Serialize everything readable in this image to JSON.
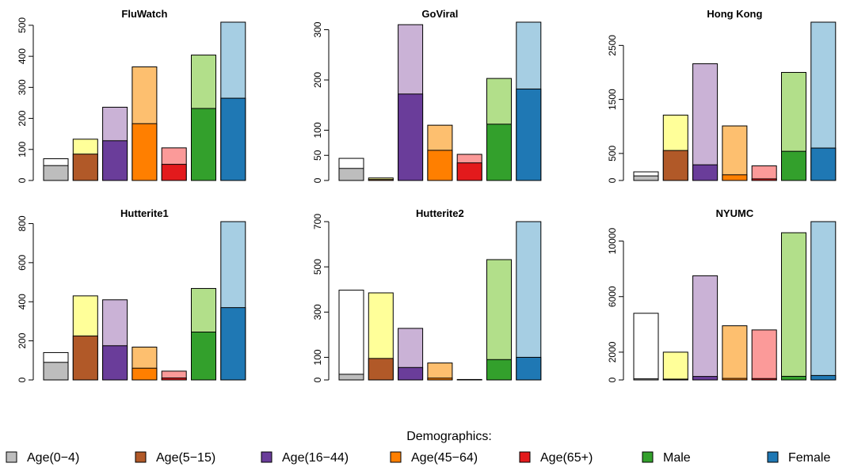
{
  "chart_data": {
    "type": "bar",
    "stacked": true,
    "grid": false,
    "legend": {
      "title": "Demographics:",
      "position": "bottom",
      "entries": [
        {
          "label": "Age(0−4)",
          "color": "#bdbdbd"
        },
        {
          "label": "Age(5−15)",
          "color": "#b15928"
        },
        {
          "label": "Age(16−44)",
          "color": "#6a3d9a"
        },
        {
          "label": "Age(45−64)",
          "color": "#ff7f00"
        },
        {
          "label": "Age(65+)",
          "color": "#e31a1c"
        },
        {
          "label": "Male",
          "color": "#33a02c"
        },
        {
          "label": "Female",
          "color": "#1f78b4"
        }
      ]
    },
    "colors": {
      "dark": [
        "#bdbdbd",
        "#b15928",
        "#6a3d9a",
        "#ff7f00",
        "#e31a1c",
        "#33a02c",
        "#1f78b4"
      ],
      "light": [
        "#ffffff",
        "#ffff99",
        "#cab2d6",
        "#fdbf6f",
        "#fb9a99",
        "#b2df8a",
        "#a6cee3"
      ]
    },
    "panels": [
      {
        "title": "FluWatch",
        "ylim": [
          0,
          510
        ],
        "yticks": [
          0,
          100,
          200,
          300,
          400,
          500
        ],
        "positive": [
          48,
          85,
          128,
          183,
          52,
          232,
          265
        ],
        "total": [
          70,
          133,
          236,
          366,
          105,
          404,
          510
        ]
      },
      {
        "title": "GoViral",
        "ylim": [
          0,
          315
        ],
        "yticks": [
          0,
          50,
          100,
          200,
          300
        ],
        "positive": [
          24,
          2,
          172,
          60,
          35,
          112,
          182
        ],
        "total": [
          44,
          5,
          310,
          110,
          52,
          203,
          315
        ]
      },
      {
        "title": "Hong Kong",
        "ylim": [
          0,
          2930
        ],
        "yticks": [
          0,
          500,
          1500,
          2500
        ],
        "positive": [
          85,
          555,
          290,
          105,
          30,
          540,
          600
        ],
        "total": [
          160,
          1210,
          2160,
          1010,
          270,
          2000,
          2930
        ]
      },
      {
        "title": "Hutterite1",
        "ylim": [
          0,
          810
        ],
        "yticks": [
          0,
          200,
          400,
          600,
          800
        ],
        "positive": [
          90,
          225,
          175,
          60,
          10,
          245,
          370
        ],
        "total": [
          140,
          430,
          410,
          168,
          45,
          468,
          810
        ]
      },
      {
        "title": "Hutterite2",
        "ylim": [
          0,
          700
        ],
        "yticks": [
          0,
          100,
          300,
          500,
          700
        ],
        "positive": [
          25,
          95,
          55,
          8,
          0,
          90,
          100
        ],
        "total": [
          397,
          385,
          228,
          75,
          2,
          532,
          700
        ]
      },
      {
        "title": "NYUMC",
        "ylim": [
          0,
          11400
        ],
        "yticks": [
          0,
          2000,
          6000,
          10000
        ],
        "positive": [
          80,
          60,
          250,
          110,
          100,
          260,
          320
        ],
        "total": [
          4800,
          2000,
          7500,
          3900,
          3600,
          10600,
          11400
        ]
      }
    ]
  }
}
